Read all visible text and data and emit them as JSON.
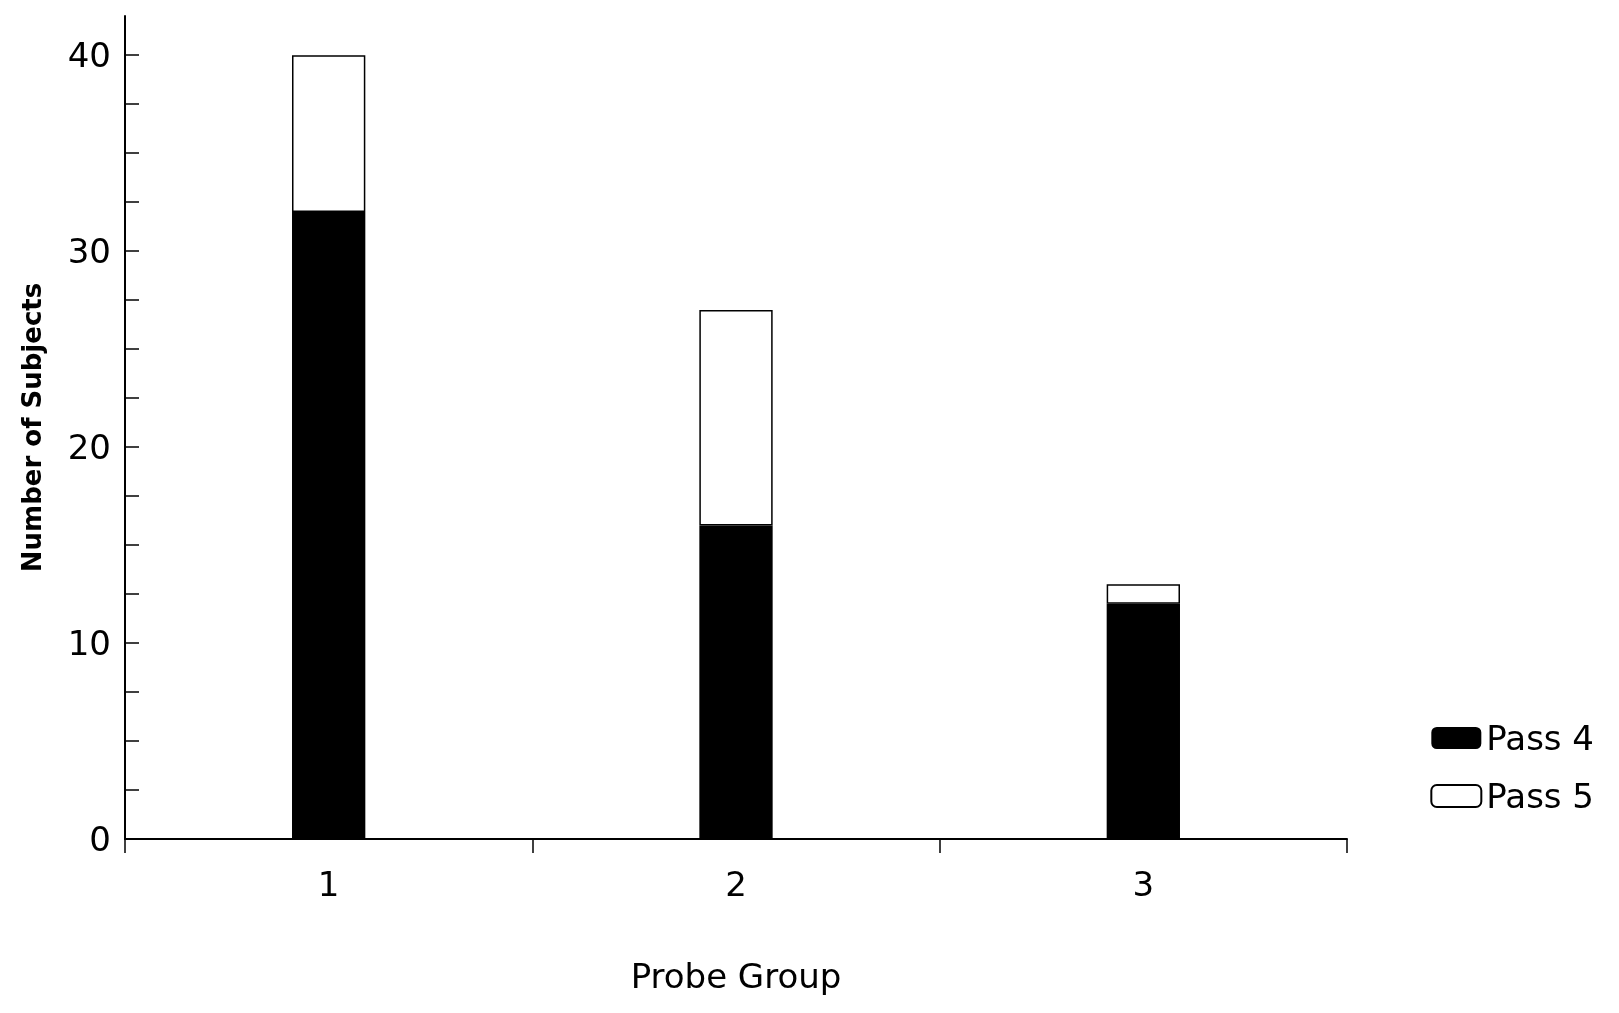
{
  "chart_data": {
    "type": "bar",
    "stacked": true,
    "xlabel": "Probe Group",
    "ylabel": "Number of Subjects",
    "categories": [
      "1",
      "2",
      "3"
    ],
    "series": [
      {
        "name": "Pass 4",
        "color": "#000000",
        "values": [
          32,
          16,
          12
        ]
      },
      {
        "name": "Pass 5",
        "color": "#ffffff",
        "values": [
          8,
          11,
          1
        ]
      }
    ],
    "ylim": [
      0,
      42
    ],
    "yticks": [
      0,
      {
        "value": 2.5,
        "label": null
      },
      {
        "value": 5,
        "label": null
      },
      {
        "value": 7.5,
        "label": null
      },
      10,
      {
        "value": 12.5,
        "label": null
      },
      {
        "value": 15,
        "label": null
      },
      {
        "value": 17.5,
        "label": null
      },
      20,
      {
        "value": 22.5,
        "label": null
      },
      {
        "value": 25,
        "label": null
      },
      {
        "value": 27.5,
        "label": null
      },
      30,
      {
        "value": 32.5,
        "label": null
      },
      {
        "value": 35,
        "label": null
      },
      {
        "value": 37.5,
        "label": null
      },
      40
    ],
    "grid": false,
    "legend": "bottom right"
  }
}
